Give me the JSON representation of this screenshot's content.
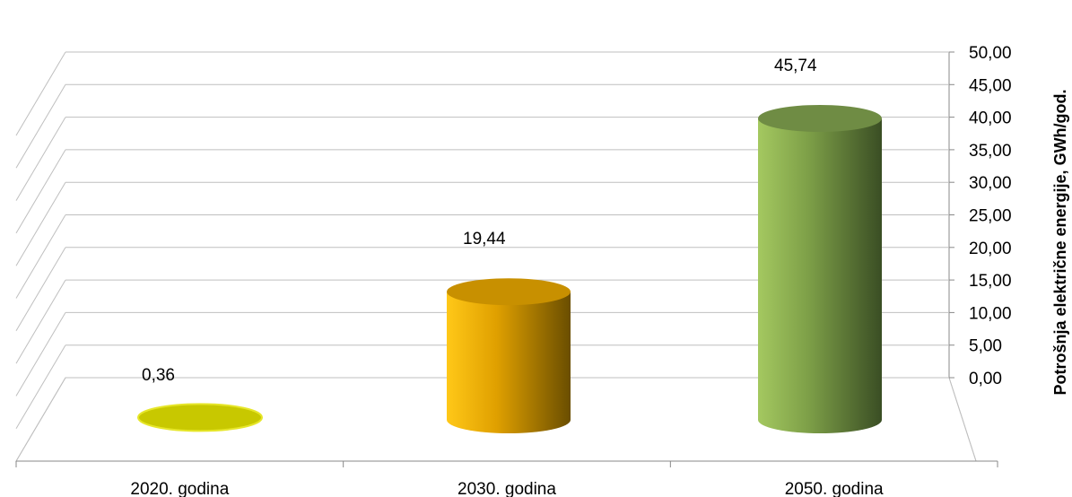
{
  "chart_data": {
    "type": "bar",
    "style": "3d-cylinder",
    "title": "",
    "xlabel": "",
    "ylabel": "Potrošnja električne energije, GWh/god.",
    "categories": [
      "2020. godina",
      "2030. godina",
      "2050. godina"
    ],
    "values": [
      0.36,
      19.44,
      45.74
    ],
    "value_labels": [
      "0,36",
      "19,44",
      "45,74"
    ],
    "ylim": [
      0,
      50
    ],
    "yticks": [
      0,
      5,
      10,
      15,
      20,
      25,
      30,
      35,
      40,
      45,
      50
    ],
    "ytick_labels": [
      "0,00",
      "5,00",
      "10,00",
      "15,00",
      "20,00",
      "25,00",
      "30,00",
      "35,00",
      "40,00",
      "45,00",
      "50,00"
    ],
    "grid": true,
    "legend": "none",
    "axis_position": "right",
    "colors": [
      "#c8c800",
      "#f0b400",
      "#8ab04c"
    ]
  }
}
